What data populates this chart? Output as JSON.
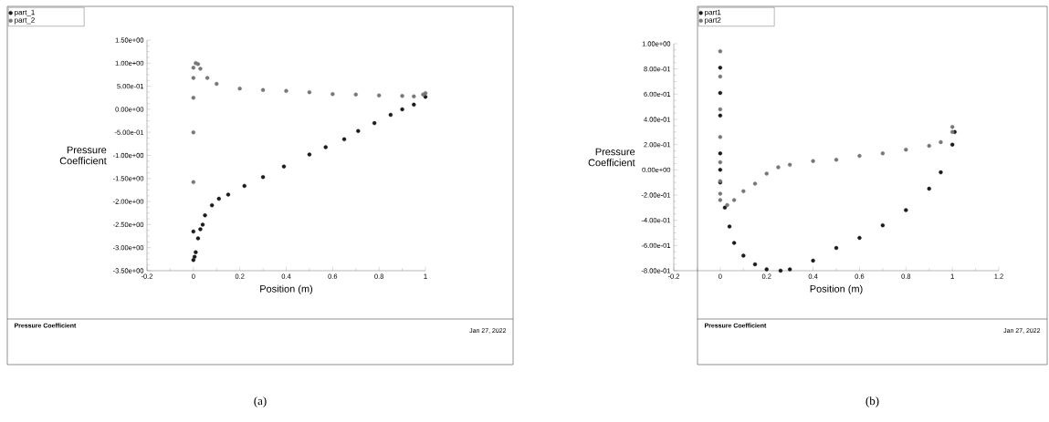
{
  "chart_data": [
    {
      "type": "scatter",
      "xlabel": "Position (m)",
      "ylabel": "Pressure Coefficient",
      "xlim": [
        -0.2,
        1
      ],
      "ylim": [
        -3.5,
        1.5
      ],
      "xticks": [
        -0.2,
        0,
        0.2,
        0.4,
        0.6,
        0.8,
        1
      ],
      "yticks": [
        {
          "value": -3.5,
          "label": "-3.50e+00"
        },
        {
          "value": -3,
          "label": "-3.00e+00"
        },
        {
          "value": -2.5,
          "label": "-2.50e+00"
        },
        {
          "value": -2,
          "label": "-2.00e+00"
        },
        {
          "value": -1.5,
          "label": "-1.50e+00"
        },
        {
          "value": -1,
          "label": "-1.00e+00"
        },
        {
          "value": -0.5,
          "label": "-5.00e-01"
        },
        {
          "value": 0,
          "label": "0.00e+00"
        },
        {
          "value": 0.5,
          "label": "5.00e-01"
        },
        {
          "value": 1,
          "label": "1.00e+00"
        },
        {
          "value": 1.5,
          "label": "1.50e+00"
        }
      ],
      "marker": "circle",
      "legend": "top left",
      "series": [
        {
          "name": "part_1",
          "color": "#1a1a1a",
          "x": [
            0,
            0,
            0.005,
            0.01,
            0.02,
            0.03,
            0.04,
            0.05,
            0.08,
            0.11,
            0.15,
            0.22,
            0.3,
            0.39,
            0.5,
            0.57,
            0.65,
            0.71,
            0.78,
            0.85,
            0.9,
            0.95,
            1.0
          ],
          "values": [
            -2.65,
            -3.27,
            -3.2,
            -3.1,
            -2.8,
            -2.6,
            -2.5,
            -2.3,
            -2.08,
            -1.94,
            -1.85,
            -1.66,
            -1.47,
            -1.24,
            -0.98,
            -0.82,
            -0.65,
            -0.47,
            -0.3,
            -0.12,
            0.0,
            0.1,
            0.27
          ]
        },
        {
          "name": "part_2",
          "color": "#777777",
          "x": [
            0,
            0,
            0,
            0,
            0,
            0.01,
            0.02,
            0.03,
            0.06,
            0.1,
            0.2,
            0.3,
            0.4,
            0.5,
            0.6,
            0.7,
            0.8,
            0.9,
            0.95,
            0.99,
            1.0
          ],
          "values": [
            -1.58,
            -0.5,
            0.25,
            0.68,
            0.9,
            1.0,
            0.98,
            0.88,
            0.68,
            0.55,
            0.45,
            0.42,
            0.4,
            0.37,
            0.33,
            0.32,
            0.3,
            0.29,
            0.28,
            0.32,
            0.35
          ]
        }
      ],
      "annotations": [
        "Pressure Coefficient",
        "Jan 27, 2022",
        "(a)"
      ]
    },
    {
      "type": "scatter",
      "xlabel": "Position (m)",
      "ylabel": "Pressure Coefficient",
      "xlim": [
        -0.2,
        1.2
      ],
      "ylim": [
        -0.8,
        1.0
      ],
      "xticks": [
        -0.2,
        0,
        0.2,
        0.4,
        0.6,
        0.8,
        1,
        1.2
      ],
      "yticks": [
        {
          "value": -0.8,
          "label": "-8.00e-01"
        },
        {
          "value": -0.6,
          "label": "-6.00e-01"
        },
        {
          "value": -0.4,
          "label": "-4.00e-01"
        },
        {
          "value": -0.2,
          "label": "-2.00e-01"
        },
        {
          "value": 0,
          "label": "0.00e+00"
        },
        {
          "value": 0.2,
          "label": "2.00e-01"
        },
        {
          "value": 0.4,
          "label": "4.00e-01"
        },
        {
          "value": 0.6,
          "label": "6.00e-01"
        },
        {
          "value": 0.8,
          "label": "8.00e-01"
        },
        {
          "value": 1.0,
          "label": "1.00e+00"
        }
      ],
      "marker": "circle",
      "legend": "top left",
      "series": [
        {
          "name": "part1",
          "color": "#1a1a1a",
          "x": [
            0,
            0,
            0,
            0,
            0,
            0,
            0.02,
            0.04,
            0.06,
            0.1,
            0.15,
            0.2,
            0.26,
            0.3,
            0.4,
            0.5,
            0.6,
            0.7,
            0.8,
            0.9,
            0.95,
            1.0,
            1.01
          ],
          "values": [
            0.81,
            0.61,
            0.43,
            0.13,
            0.0,
            -0.1,
            -0.3,
            -0.45,
            -0.58,
            -0.68,
            -0.75,
            -0.79,
            -0.8,
            -0.79,
            -0.72,
            -0.62,
            -0.54,
            -0.44,
            -0.32,
            -0.15,
            -0.02,
            0.2,
            0.3
          ]
        },
        {
          "name": "part2",
          "color": "#777777",
          "x": [
            0,
            0,
            0,
            0,
            0,
            0,
            0,
            0,
            0.03,
            0.06,
            0.1,
            0.15,
            0.2,
            0.25,
            0.3,
            0.4,
            0.5,
            0.6,
            0.7,
            0.8,
            0.9,
            0.95,
            1.0,
            1.0
          ],
          "values": [
            0.94,
            0.74,
            0.48,
            0.26,
            0.06,
            -0.09,
            -0.19,
            -0.24,
            -0.28,
            -0.24,
            -0.17,
            -0.11,
            -0.03,
            0.02,
            0.04,
            0.07,
            0.08,
            0.11,
            0.13,
            0.16,
            0.19,
            0.22,
            0.3,
            0.34
          ]
        }
      ],
      "annotations": [
        "Pressure Coefficient",
        "Jan 27, 2022",
        "(b)"
      ]
    }
  ]
}
